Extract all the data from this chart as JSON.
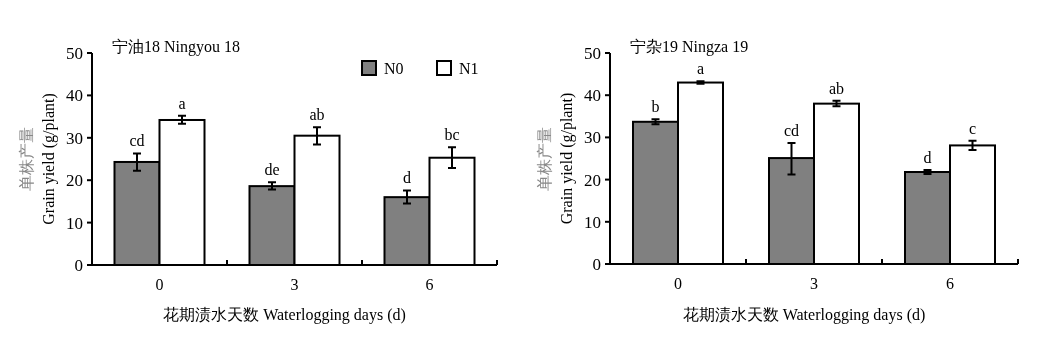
{
  "chart_data": [
    {
      "type": "bar",
      "title": "宁油18 Ningyou 18",
      "xlabel": "花期渍水天数 Waterlogging days (d)",
      "ylabel": "单株产量\nGrain yield (g/plant)",
      "categories": [
        "0",
        "3",
        "6"
      ],
      "ylim": [
        0,
        50
      ],
      "yticks": [
        0,
        10,
        20,
        30,
        40,
        50
      ],
      "grid": false,
      "legend": "top right",
      "series": [
        {
          "name": "N0",
          "color": "#808080",
          "values": [
            24.3,
            18.6,
            16.0
          ],
          "errors": [
            [
              22.2,
              26.3
            ],
            [
              17.8,
              19.5
            ],
            [
              14.5,
              17.6
            ]
          ]
        },
        {
          "name": "N1",
          "color": "#ffffff",
          "values": [
            34.2,
            30.5,
            25.3
          ],
          "errors": [
            [
              33.3,
              35.2
            ],
            [
              28.4,
              32.5
            ],
            [
              22.9,
              27.8
            ]
          ]
        }
      ],
      "annotations": [
        {
          "text": "cd",
          "x": "0",
          "y": 24.3
        },
        {
          "text": "a",
          "x": "0",
          "y": 34.2
        },
        {
          "text": "de",
          "x": "3",
          "y": 18.6
        },
        {
          "text": "ab",
          "x": "3",
          "y": 30.5
        },
        {
          "text": "d",
          "x": "6",
          "y": 16.0
        },
        {
          "text": "bc",
          "x": "6",
          "y": 25.3
        }
      ]
    },
    {
      "type": "bar",
      "title": "宁杂19 Ningza 19",
      "xlabel": "花期渍水天数 Waterlogging days (d)",
      "ylabel": "单株产量\nGrain yield (g/plant)",
      "categories": [
        "0",
        "3",
        "6"
      ],
      "ylim": [
        0,
        50
      ],
      "yticks": [
        0,
        10,
        20,
        30,
        40,
        50
      ],
      "grid": false,
      "series": [
        {
          "color": "#808080",
          "values": [
            33.7,
            25.1,
            21.8
          ],
          "errors": [
            [
              33.1,
              34.3
            ],
            [
              21.2,
              28.7
            ],
            [
              21.3,
              22.3
            ]
          ]
        },
        {
          "color": "#ffffff",
          "values": [
            43.0,
            38.0,
            28.1
          ],
          "errors": [
            [
              42.7,
              43.3
            ],
            [
              37.4,
              38.7
            ],
            [
              27.0,
              29.2
            ]
          ]
        }
      ],
      "annotations": [
        {
          "text": "b",
          "x": "0",
          "y": 33.7
        },
        {
          "text": "a",
          "x": "0",
          "y": 43.0
        },
        {
          "text": "cd",
          "x": "3",
          "y": 25.1
        },
        {
          "text": "ab",
          "x": "3",
          "y": 38.0
        },
        {
          "text": "d",
          "x": "6",
          "y": 21.8
        },
        {
          "text": "c",
          "x": "6",
          "y": 28.1
        }
      ]
    }
  ]
}
